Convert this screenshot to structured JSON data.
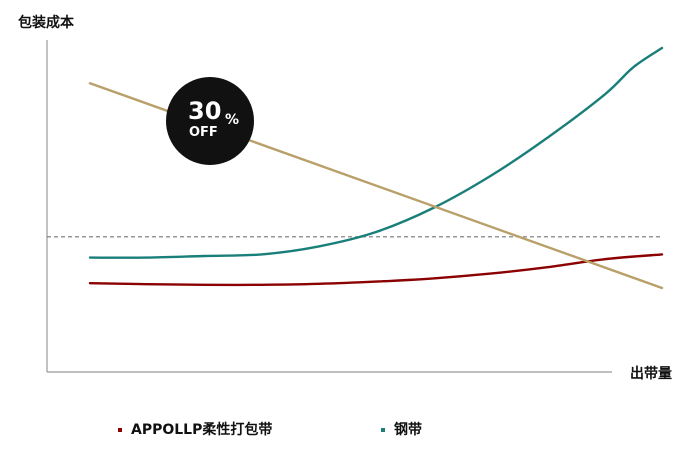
{
  "chart_data": {
    "type": "line",
    "ylabel": "包装成本",
    "xlabel": "出带量",
    "xlim": [
      0,
      100
    ],
    "ylim": [
      0,
      100
    ],
    "reference_line": {
      "y": 41,
      "style": "dashed",
      "color": "#777777"
    },
    "series": [
      {
        "name": "APPOLLP柔性打包带",
        "color": "#8b0000",
        "x": [
          0,
          10,
          20,
          30,
          40,
          50,
          60,
          70,
          80,
          90,
          100
        ],
        "y": [
          26.5,
          26.2,
          26.0,
          26.0,
          26.3,
          27.0,
          28.0,
          29.5,
          31.5,
          34.0,
          35.5
        ]
      },
      {
        "name": "钢带",
        "color": "#1a7f7a",
        "x": [
          0,
          10,
          20,
          30,
          40,
          50,
          60,
          70,
          80,
          90,
          95,
          100
        ],
        "y": [
          34.5,
          34.5,
          35.0,
          35.5,
          38.0,
          42.5,
          50.0,
          60.0,
          72.0,
          85.5,
          94.0,
          100.0
        ]
      },
      {
        "color": "#b9a06a",
        "x": [
          0,
          100
        ],
        "y": [
          89,
          25
        ]
      }
    ],
    "legend": {
      "position": "bottom"
    }
  },
  "badge": {
    "big": "30",
    "pct": "%",
    "off": "OFF"
  }
}
